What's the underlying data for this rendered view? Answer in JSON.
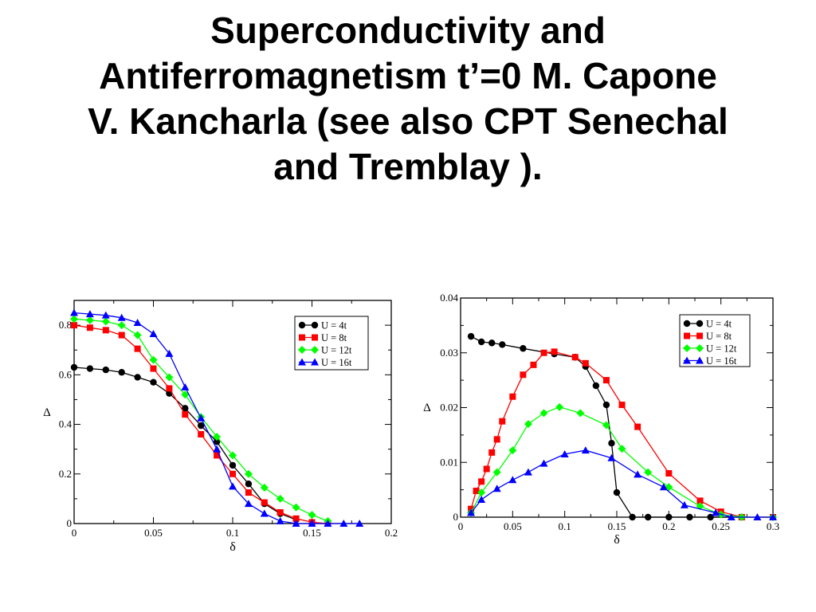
{
  "slide": {
    "title_lines": [
      "Superconductivity and",
      "Antiferromagnetism t’=0 M. Capone",
      "V. Kancharla (see also CPT Senechal",
      "and Tremblay )."
    ]
  },
  "colors": {
    "U = 4t": "#000000",
    "U = 8t": "#ff0000",
    "U = 12t": "#00ff00",
    "U = 16t": "#0000ff"
  },
  "chart_data": [
    {
      "type": "line",
      "xlabel": "δ",
      "ylabel": "Δ",
      "xlim": [
        0,
        0.2
      ],
      "ylim": [
        0,
        0.9
      ],
      "xticks": [
        0,
        0.05,
        0.1,
        0.15,
        0.2
      ],
      "xtick_labels": [
        "0",
        "0.05",
        "0.1",
        "0.15",
        "0.2"
      ],
      "yticks": [
        0,
        0.2,
        0.4,
        0.6,
        0.8
      ],
      "ytick_labels": [
        "0",
        "0.2",
        "0.4",
        "0.6",
        "0.8"
      ],
      "grid": false,
      "legend": "top-right",
      "series": [
        {
          "name": "U = 4t",
          "marker": "circle",
          "x": [
            0,
            0.01,
            0.02,
            0.03,
            0.04,
            0.05,
            0.06,
            0.07,
            0.08,
            0.09,
            0.1,
            0.11,
            0.12,
            0.13,
            0.14
          ],
          "y": [
            0.63,
            0.625,
            0.62,
            0.61,
            0.59,
            0.57,
            0.525,
            0.465,
            0.395,
            0.33,
            0.235,
            0.16,
            0.08,
            0.04,
            0.015
          ]
        },
        {
          "name": "U = 8t",
          "marker": "square",
          "x": [
            0,
            0.01,
            0.02,
            0.03,
            0.04,
            0.05,
            0.06,
            0.07,
            0.08,
            0.09,
            0.1,
            0.11,
            0.12,
            0.13,
            0.14,
            0.15,
            0.16
          ],
          "y": [
            0.8,
            0.79,
            0.78,
            0.76,
            0.705,
            0.625,
            0.545,
            0.44,
            0.36,
            0.275,
            0.2,
            0.125,
            0.085,
            0.045,
            0.02,
            0.005,
            0.0
          ]
        },
        {
          "name": "U = 12t",
          "marker": "diamond",
          "x": [
            0,
            0.01,
            0.02,
            0.03,
            0.04,
            0.05,
            0.06,
            0.07,
            0.08,
            0.09,
            0.1,
            0.11,
            0.12,
            0.13,
            0.14,
            0.15,
            0.16
          ],
          "y": [
            0.825,
            0.82,
            0.815,
            0.8,
            0.76,
            0.66,
            0.59,
            0.52,
            0.43,
            0.35,
            0.275,
            0.2,
            0.145,
            0.1,
            0.065,
            0.035,
            0.01
          ]
        },
        {
          "name": "U = 16t",
          "marker": "triangle",
          "x": [
            0,
            0.01,
            0.02,
            0.03,
            0.04,
            0.05,
            0.06,
            0.07,
            0.08,
            0.09,
            0.1,
            0.11,
            0.12,
            0.13,
            0.14,
            0.15,
            0.16,
            0.17,
            0.18
          ],
          "y": [
            0.85,
            0.845,
            0.84,
            0.83,
            0.81,
            0.765,
            0.685,
            0.55,
            0.425,
            0.3,
            0.15,
            0.08,
            0.04,
            0.01,
            0.0,
            0.0,
            0.0,
            0.0,
            0.0
          ]
        }
      ]
    },
    {
      "type": "line",
      "xlabel": "δ",
      "ylabel": "Δ",
      "xlim": [
        0,
        0.3
      ],
      "ylim": [
        0,
        0.04
      ],
      "xticks": [
        0,
        0.05,
        0.1,
        0.15,
        0.2,
        0.25,
        0.3
      ],
      "xtick_labels": [
        "0",
        "0.05",
        "0.1",
        "0.15",
        "0.2",
        "0.25",
        "0.3"
      ],
      "yticks": [
        0,
        0.01,
        0.02,
        0.03,
        0.04
      ],
      "ytick_labels": [
        "0",
        "0.01",
        "0.02",
        "0.03",
        "0.04"
      ],
      "grid": false,
      "legend": "top-right",
      "series": [
        {
          "name": "U = 4t",
          "marker": "circle",
          "x": [
            0.01,
            0.02,
            0.03,
            0.04,
            0.06,
            0.09,
            0.11,
            0.12,
            0.13,
            0.14,
            0.145,
            0.15,
            0.165,
            0.18,
            0.2,
            0.22,
            0.24,
            0.27
          ],
          "y": [
            0.033,
            0.032,
            0.0318,
            0.0315,
            0.0308,
            0.0298,
            0.0292,
            0.0275,
            0.024,
            0.0205,
            0.0135,
            0.0045,
            0.0,
            0.0,
            0.0,
            0.0,
            0.0,
            0.0
          ]
        },
        {
          "name": "U = 8t",
          "marker": "square",
          "x": [
            0.01,
            0.015,
            0.02,
            0.025,
            0.03,
            0.035,
            0.04,
            0.05,
            0.06,
            0.07,
            0.08,
            0.09,
            0.11,
            0.12,
            0.14,
            0.155,
            0.17,
            0.2,
            0.23,
            0.25,
            0.27,
            0.3
          ],
          "y": [
            0.0015,
            0.0048,
            0.0065,
            0.0088,
            0.0118,
            0.0142,
            0.0175,
            0.022,
            0.026,
            0.0278,
            0.03,
            0.0302,
            0.0292,
            0.0281,
            0.025,
            0.0205,
            0.0165,
            0.008,
            0.003,
            0.001,
            0.0,
            0.0
          ]
        },
        {
          "name": "U = 12t",
          "marker": "diamond",
          "x": [
            0.01,
            0.02,
            0.035,
            0.05,
            0.065,
            0.08,
            0.095,
            0.115,
            0.14,
            0.155,
            0.18,
            0.2,
            0.23,
            0.25,
            0.27,
            0.3
          ],
          "y": [
            0.0008,
            0.0045,
            0.0082,
            0.0122,
            0.017,
            0.019,
            0.0201,
            0.019,
            0.0168,
            0.0125,
            0.0082,
            0.0055,
            0.002,
            0.0005,
            0.0,
            0.0
          ]
        },
        {
          "name": "U = 16t",
          "marker": "triangle",
          "x": [
            0.01,
            0.02,
            0.035,
            0.05,
            0.065,
            0.08,
            0.1,
            0.12,
            0.145,
            0.17,
            0.195,
            0.215,
            0.245,
            0.26,
            0.285,
            0.3
          ],
          "y": [
            0.0008,
            0.0032,
            0.0052,
            0.0068,
            0.0082,
            0.0098,
            0.0115,
            0.0122,
            0.0108,
            0.0078,
            0.0055,
            0.0022,
            0.0008,
            0.0,
            0.0,
            0.0
          ]
        }
      ]
    }
  ]
}
